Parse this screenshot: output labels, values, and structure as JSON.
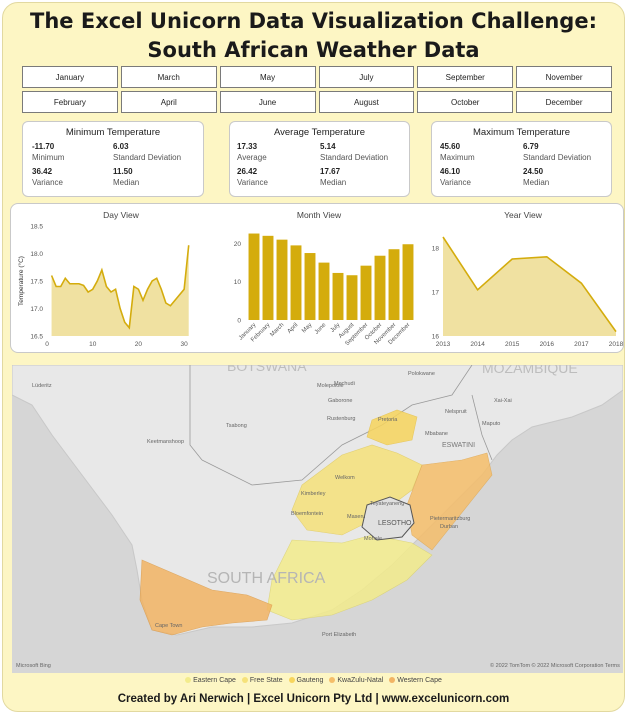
{
  "header": {
    "title_line1": "The Excel Unicorn Data Visualization Challenge:",
    "title_line2": "South African Weather Data"
  },
  "months": [
    "January",
    "March",
    "May",
    "July",
    "September",
    "November",
    "February",
    "April",
    "June",
    "August",
    "October",
    "December"
  ],
  "stats": {
    "min": {
      "title": "Minimum Temperature",
      "v1": "-11.70",
      "l1": "Minimum",
      "v2": "6.03",
      "l2": "Standard Deviation",
      "v3": "36.42",
      "l3": "Variance",
      "v4": "11.50",
      "l4": "Median"
    },
    "avg": {
      "title": "Average Temperature",
      "v1": "17.33",
      "l1": "Average",
      "v2": "5.14",
      "l2": "Standard Deviation",
      "v3": "26.42",
      "l3": "Variance",
      "v4": "17.67",
      "l4": "Median"
    },
    "max": {
      "title": "Maximum Temperature",
      "v1": "45.60",
      "l1": "Maximum",
      "v2": "6.79",
      "l2": "Standard Deviation",
      "v3": "46.10",
      "l3": "Variance",
      "v4": "24.50",
      "l4": "Median"
    }
  },
  "chart_titles": {
    "day": "Day View",
    "month": "Month View",
    "year": "Year View"
  },
  "chart_data": [
    {
      "type": "area",
      "title": "Day View",
      "ylabel": "Temperature (°C)",
      "x": [
        1,
        2,
        3,
        4,
        5,
        6,
        7,
        8,
        9,
        10,
        11,
        12,
        13,
        14,
        15,
        16,
        17,
        18,
        19,
        20,
        21,
        22,
        23,
        24,
        25,
        26,
        27,
        28,
        29,
        30,
        31
      ],
      "values": [
        17.6,
        17.4,
        17.4,
        17.55,
        17.45,
        17.45,
        17.45,
        17.42,
        17.3,
        17.35,
        17.5,
        17.7,
        17.4,
        17.3,
        17.35,
        17.0,
        16.75,
        16.65,
        17.4,
        17.35,
        17.15,
        17.35,
        17.5,
        17.55,
        17.35,
        17.1,
        17.05,
        17.15,
        17.25,
        17.35,
        18.15
      ],
      "ylim": [
        16.5,
        18.5
      ],
      "yticks": [
        "16.5",
        "17.0",
        "17.5",
        "18.0",
        "18.5"
      ],
      "xticks": [
        "0",
        "10",
        "20",
        "30"
      ],
      "color": "#d4ac0d"
    },
    {
      "type": "bar",
      "title": "Month View",
      "categories": [
        "January",
        "February",
        "March",
        "April",
        "May",
        "June",
        "July",
        "August",
        "September",
        "October",
        "November",
        "December"
      ],
      "values": [
        22.6,
        22.0,
        21.0,
        19.5,
        17.5,
        15.0,
        12.3,
        11.7,
        14.2,
        16.8,
        18.5,
        19.8
      ],
      "values_note": "",
      "ylim": [
        0,
        20
      ],
      "yticks": [
        "0",
        "10",
        "20"
      ],
      "color": "#d4ac0d"
    },
    {
      "type": "area",
      "title": "Year View",
      "x": [
        "2013",
        "2014",
        "2015",
        "2016",
        "2017",
        "2018"
      ],
      "values": [
        18.25,
        17.05,
        17.75,
        17.8,
        17.2,
        16.1
      ],
      "ylim": [
        16,
        18.5
      ],
      "yticks": [
        "16",
        "17",
        "18"
      ],
      "color": "#d4ac0d"
    }
  ],
  "map": {
    "country_label": "SOUTH AFRICA",
    "neighbor_labels": [
      "LESOTHO",
      "ESWATINI",
      "MOZAMBIQUE",
      "BOTSWANA"
    ],
    "cities": [
      "Molepolole",
      "Mochudi",
      "Gaborone",
      "Rustenburg",
      "Polokwane",
      "Nelspruit",
      "Maputo",
      "Mbabane",
      "Pretoria",
      "Keetmanshoop",
      "Tsabong",
      "Kimberley",
      "Bloemfontein",
      "Welkom",
      "Teyateyaneng",
      "Maseru",
      "Mohale",
      "Pietermaritzburg",
      "Durban",
      "Port Elizabeth",
      "Cape Town",
      "Xai-Xai",
      "Lüderitz"
    ],
    "copyright": "© 2022 TomTom  © 2022 Microsoft Corporation  Terms",
    "bing": "Microsoft Bing"
  },
  "legend": [
    {
      "label": "Eastern Cape",
      "color": "#f3ec8c"
    },
    {
      "label": "Free State",
      "color": "#f6e27a"
    },
    {
      "label": "Gauteng",
      "color": "#f7d55d"
    },
    {
      "label": "KwaZulu-Natal",
      "color": "#f5be6a"
    },
    {
      "label": "Western Cape",
      "color": "#f2b464"
    }
  ],
  "footer": "Created by Ari Nerwich | Excel Unicorn Pty Ltd | www.excelunicorn.com"
}
